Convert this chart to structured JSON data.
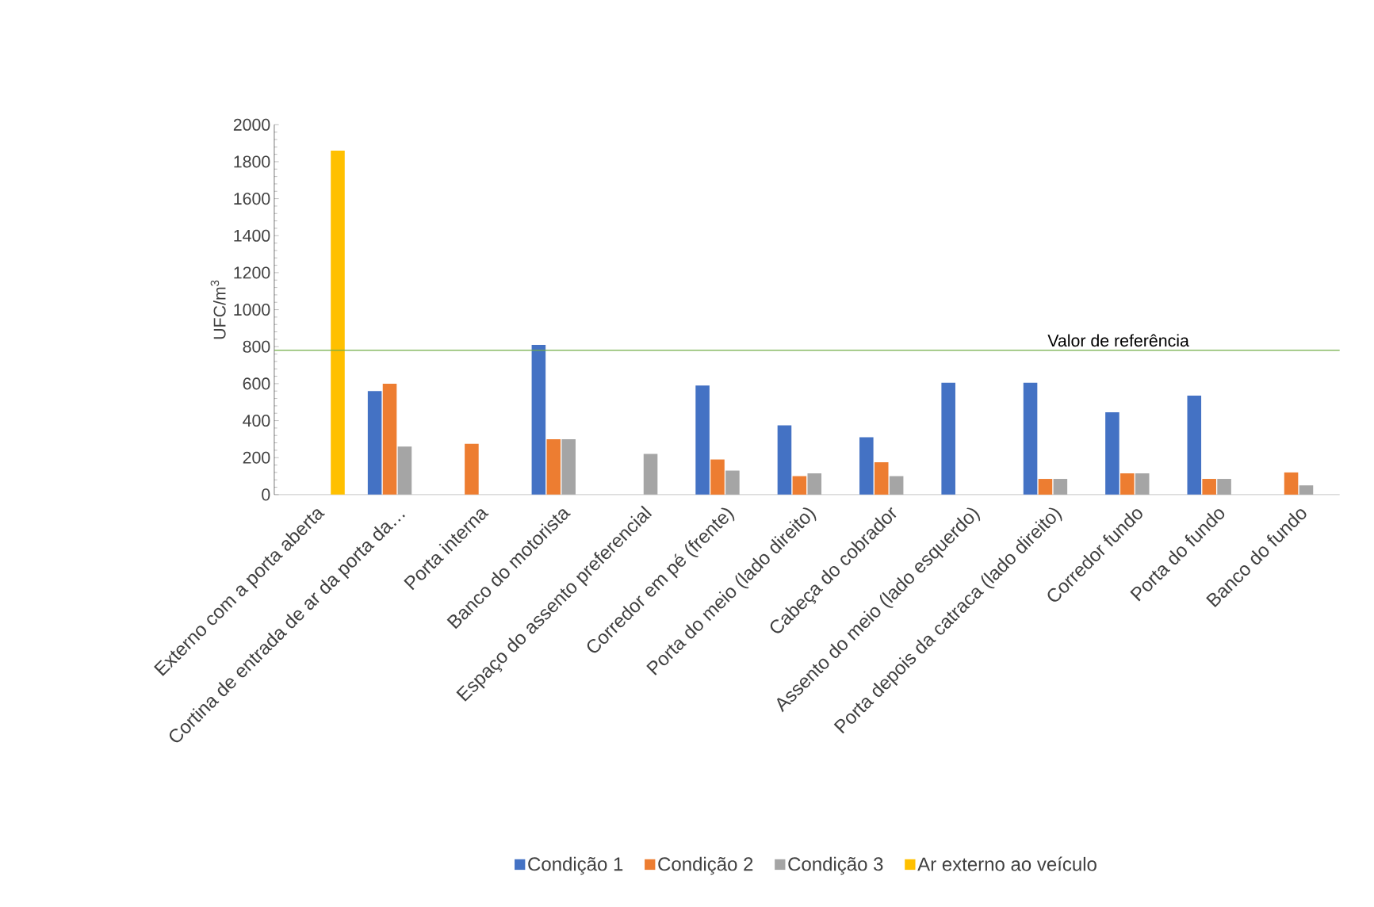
{
  "chart_data": {
    "type": "bar",
    "ylabel": "UFC/m$^{3}$",
    "categories": [
      "Externo com a porta aberta",
      "Cortina de entrada de ar da porta da…",
      "Porta interna",
      "Banco do motorista",
      "Espaço do assento preferencial",
      "Corredor em pé (frente)",
      "Porta do meio (lado direito)",
      "Cabeça do cobrador",
      "Assento do meio (lado esquerdo)",
      "Porta depois da catraca (lado direito)",
      "Corredor fundo",
      "Porta do fundo",
      "Banco do fundo"
    ],
    "series": [
      {
        "name": "Condição 1",
        "color": "#4472c4",
        "values": [
          null,
          560,
          null,
          810,
          null,
          590,
          375,
          310,
          605,
          605,
          445,
          535,
          null
        ]
      },
      {
        "name": "Condição 2",
        "color": "#ed7d31",
        "values": [
          null,
          600,
          275,
          300,
          null,
          190,
          100,
          175,
          null,
          85,
          115,
          85,
          120
        ]
      },
      {
        "name": "Condição 3",
        "color": "#a5a5a5",
        "values": [
          null,
          260,
          null,
          300,
          220,
          130,
          115,
          100,
          null,
          85,
          115,
          85,
          50
        ]
      },
      {
        "name": "Ar externo ao veículo",
        "color": "#ffc000",
        "values": [
          1860,
          null,
          null,
          null,
          null,
          null,
          null,
          null,
          null,
          null,
          null,
          null,
          null
        ]
      }
    ],
    "ylim": [
      0,
      2000
    ],
    "yticks": [
      0,
      200,
      400,
      600,
      800,
      1000,
      1200,
      1400,
      1600,
      1800,
      2000
    ],
    "ref_lines": [
      {
        "axis": "y",
        "value": 780,
        "label": "Valor de referência",
        "color": "#70ad47"
      }
    ],
    "legend": "bottom",
    "grid": false
  }
}
